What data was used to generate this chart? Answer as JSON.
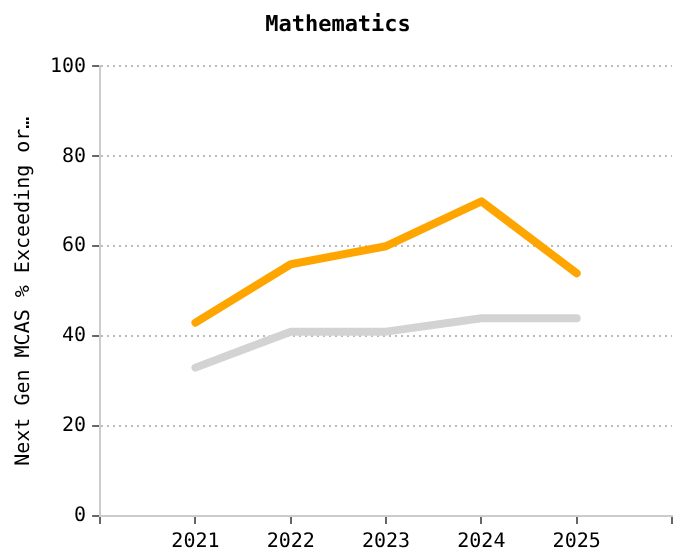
{
  "chart_data": {
    "type": "line",
    "title": "Mathematics",
    "ylabel": "Next Gen MCAS % Exceeding or…",
    "x": [
      2021,
      2022,
      2023,
      2024,
      2025
    ],
    "xlim": [
      2020,
      2026
    ],
    "xticks": [
      {
        "value": 2020,
        "label": null
      },
      2021,
      2022,
      2023,
      2024,
      2025,
      {
        "value": 2026,
        "label": null
      }
    ],
    "ylim": [
      0,
      100
    ],
    "yticks": [
      0,
      20,
      40,
      60,
      80,
      100
    ],
    "grid": "y",
    "line_style": "solid",
    "marker": "none",
    "legend": false,
    "series": [
      {
        "color": "#d3d3d3",
        "values": [
          33,
          41,
          41,
          44,
          44
        ]
      },
      {
        "color": "#ffa500",
        "values": [
          43,
          56,
          60,
          70,
          54
        ]
      }
    ]
  }
}
